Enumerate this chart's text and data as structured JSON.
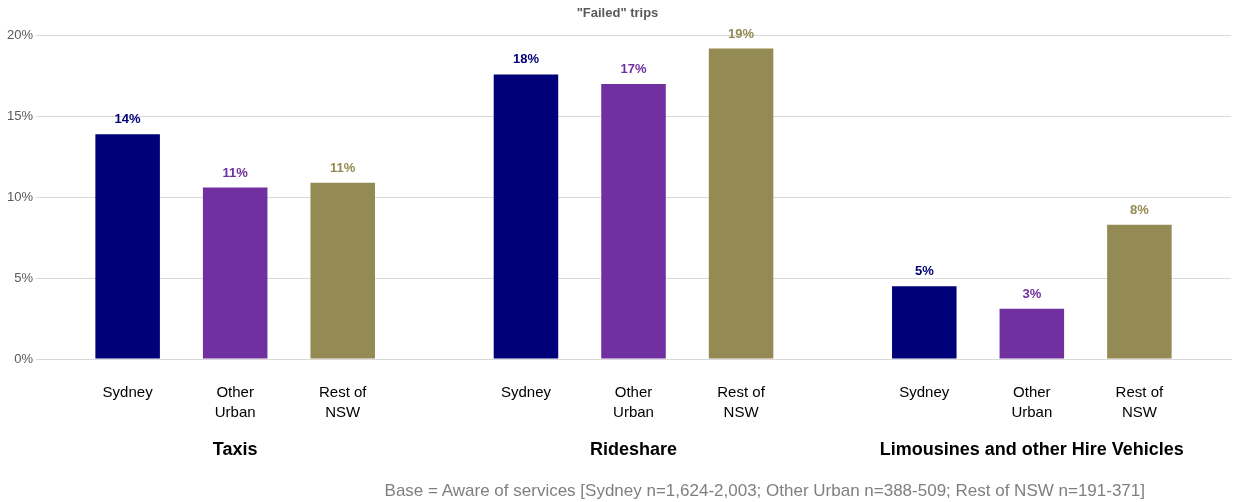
{
  "chart_data": {
    "type": "bar",
    "title": "\"Failed\" trips",
    "categories": [
      "Taxis",
      "Rideshare",
      "Limousines and other Hire Vehicles"
    ],
    "series": [
      {
        "name": "Sydney",
        "color": "#000078",
        "values": [
          13.9,
          17.6,
          4.5
        ],
        "value_labels": [
          "14%",
          "18%",
          "5%"
        ]
      },
      {
        "name": "Other Urban",
        "color": "#7030a0",
        "values": [
          10.6,
          17.0,
          3.1
        ],
        "value_labels": [
          "11%",
          "17%",
          "3%"
        ]
      },
      {
        "name": "Rest of NSW",
        "color": "#948a54",
        "values": [
          10.9,
          19.2,
          8.3
        ],
        "value_labels": [
          "11%",
          "19%",
          "8%"
        ]
      }
    ],
    "ylim": [
      0,
      20
    ],
    "yticks": [
      {
        "value": 0,
        "label": "0%"
      },
      {
        "value": 5,
        "label": "5%"
      },
      {
        "value": 10,
        "label": "10%"
      },
      {
        "value": 15,
        "label": "15%"
      },
      {
        "value": 20,
        "label": "20%"
      }
    ],
    "grid": "y",
    "legend": false,
    "annotations": [
      "Base = Aware of services [Sydney n=1,624-2,003; Other Urban n=388-509; Rest of NSW n=191-371]"
    ]
  }
}
